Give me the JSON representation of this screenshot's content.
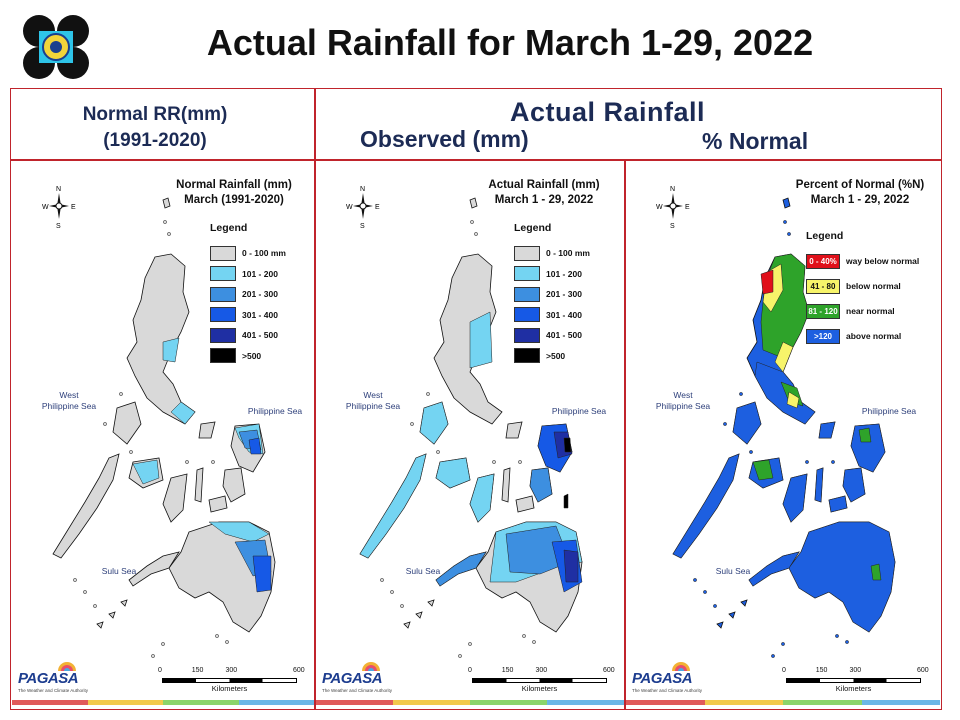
{
  "page_title": "Actual Rainfall for March 1-29, 2022",
  "headers": {
    "normal_line1": "Normal RR(mm)",
    "normal_line2": "(1991-2020)",
    "actual": "Actual Rainfall",
    "observed": "Observed (mm)",
    "percent": "% Normal"
  },
  "panels": [
    {
      "id": "normal",
      "map_title_1": "Normal Rainfall (mm)",
      "map_title_2": "March (1991-2020)",
      "legend_title": "Legend",
      "legend": [
        {
          "label": "0 - 100 mm",
          "color": "#d9d9d9"
        },
        {
          "label": "101 - 200",
          "color": "#74d4f2"
        },
        {
          "label": "201 - 300",
          "color": "#3d8fe0"
        },
        {
          "label": "301 - 400",
          "color": "#1659e6"
        },
        {
          "label": "401 - 500",
          "color": "#1f2fa3"
        },
        {
          "label": ">500",
          "color": "#000000"
        }
      ]
    },
    {
      "id": "observed",
      "map_title_1": "Actual Rainfall (mm)",
      "map_title_2": "March 1 - 29, 2022",
      "legend_title": "Legend",
      "legend": [
        {
          "label": "0 - 100 mm",
          "color": "#d9d9d9"
        },
        {
          "label": "101 - 200",
          "color": "#74d4f2"
        },
        {
          "label": "201 - 300",
          "color": "#3d8fe0"
        },
        {
          "label": "301 - 400",
          "color": "#1659e6"
        },
        {
          "label": "401 - 500",
          "color": "#1f2fa3"
        },
        {
          "label": ">500",
          "color": "#000000"
        }
      ]
    },
    {
      "id": "percent",
      "map_title_1": "Percent of Normal (%N)",
      "map_title_2": "March 1 - 29, 2022",
      "legend_title": "Legend",
      "legend": [
        {
          "swatch": "0 - 40%",
          "label": "way below normal",
          "color": "#e0101a"
        },
        {
          "swatch": "41 - 80",
          "label": "below normal",
          "color": "#f7f46a"
        },
        {
          "swatch": "81 - 120",
          "label": "near normal",
          "color": "#2ea32a"
        },
        {
          "swatch": ">120",
          "label": "above normal",
          "color": "#1d5fe0"
        }
      ]
    }
  ],
  "seas": {
    "west": "West\nPhilippine Sea",
    "east": "Philippine Sea",
    "sulu": "Sulu Sea"
  },
  "scale_bar": {
    "ticks": [
      "0",
      "150",
      "300",
      "600"
    ],
    "unit": "Kilometers"
  },
  "compass": {
    "n": "N",
    "s": "S",
    "e": "E",
    "w": "W"
  },
  "pagasa": {
    "word": "PAGASA",
    "tagline": "The Weather and Climate Authority"
  },
  "colors": {
    "frame": "#c0242c",
    "header_text": "#1c2b55",
    "stripe": [
      "#e05a5a",
      "#f2c94c",
      "#8bd46a",
      "#6ab7e6"
    ]
  }
}
